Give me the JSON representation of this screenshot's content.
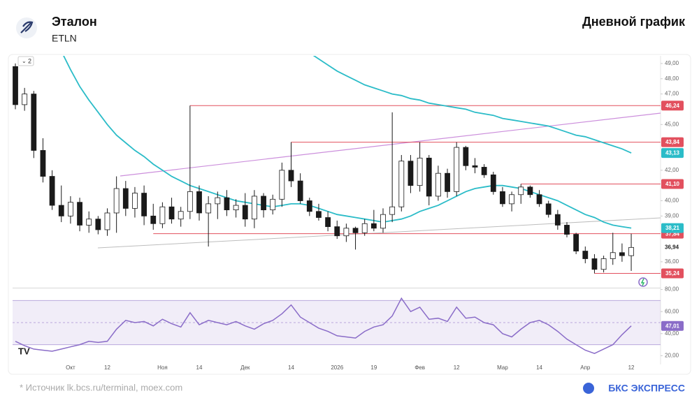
{
  "header": {
    "title": "Эталон",
    "ticker": "ETLN",
    "period": "Дневной график"
  },
  "footer": {
    "source": "* Источник lk.bcs.ru/terminal, moex.com",
    "brand": "БКС ЭКСПРЕСС"
  },
  "chart_data": {
    "type": "candlestick",
    "indicator_badge": "2",
    "categories": [
      null,
      null,
      null,
      null,
      null,
      null,
      "Окт",
      null,
      null,
      null,
      "12",
      null,
      null,
      null,
      null,
      null,
      "Ноя",
      null,
      null,
      null,
      "14",
      null,
      null,
      null,
      null,
      "Дек",
      null,
      null,
      null,
      null,
      "14",
      null,
      null,
      null,
      null,
      "2026",
      null,
      null,
      null,
      "19",
      null,
      null,
      null,
      null,
      "Фев",
      null,
      null,
      null,
      "12",
      null,
      null,
      null,
      null,
      "Мар",
      null,
      null,
      null,
      "14",
      null,
      null,
      null,
      null,
      "Апр",
      null,
      null,
      null,
      null,
      "12"
    ],
    "open": [
      48.8,
      46.3,
      47.0,
      43.3,
      41.6,
      39.7,
      39.0,
      39.9,
      38.4,
      38.8,
      38.1,
      39.2,
      40.8,
      39.5,
      40.5,
      39.0,
      38.5,
      39.6,
      38.8,
      39.3,
      40.6,
      39.2,
      39.8,
      40.2,
      39.4,
      39.7,
      38.8,
      40.3,
      39.4,
      40.1,
      42.0,
      41.3,
      40.0,
      39.3,
      38.9,
      38.3,
      37.7,
      38.2,
      37.9,
      38.5,
      38.2,
      39.1,
      39.6,
      42.6,
      41.0,
      42.8,
      40.3,
      41.8,
      40.6,
      43.5,
      42.3,
      42.2,
      41.7,
      40.6,
      39.8,
      40.4,
      40.9,
      40.4,
      39.8,
      39.1,
      38.4,
      37.8,
      36.7,
      36.2,
      35.5,
      36.2,
      36.6,
      36.4
    ],
    "high": [
      49.0,
      47.4,
      47.2,
      44.1,
      42.0,
      41.0,
      40.3,
      40.2,
      39.3,
      39.0,
      39.5,
      41.6,
      41.3,
      40.9,
      41.0,
      39.8,
      39.9,
      40.2,
      39.6,
      46.24,
      41.0,
      40.3,
      40.6,
      40.7,
      40.1,
      40.5,
      40.7,
      40.5,
      40.4,
      42.5,
      43.84,
      41.8,
      40.2,
      39.8,
      39.3,
      38.7,
      38.5,
      38.3,
      38.8,
      39.4,
      39.5,
      45.8,
      43.0,
      43.0,
      43.84,
      43.0,
      42.3,
      42.1,
      43.84,
      43.6,
      42.8,
      42.4,
      41.9,
      40.9,
      40.6,
      41.1,
      41.0,
      40.7,
      40.0,
      39.4,
      38.6,
      37.9,
      37.0,
      36.5,
      36.4,
      37.9,
      37.2,
      37.84
    ],
    "low": [
      46.0,
      45.9,
      42.8,
      41.2,
      39.4,
      38.6,
      38.5,
      38.0,
      37.9,
      37.8,
      37.7,
      37.9,
      39.0,
      38.9,
      38.4,
      38.1,
      38.2,
      38.5,
      38.3,
      38.8,
      38.7,
      37.0,
      38.8,
      39.0,
      38.9,
      38.3,
      38.2,
      38.9,
      39.1,
      39.6,
      40.9,
      39.8,
      39.0,
      38.7,
      38.0,
      37.5,
      37.3,
      36.8,
      37.7,
      38.0,
      37.9,
      38.6,
      39.3,
      40.5,
      40.6,
      39.7,
      40.0,
      40.2,
      40.3,
      42.0,
      41.8,
      41.5,
      40.4,
      39.6,
      39.3,
      39.8,
      40.2,
      39.6,
      38.9,
      38.1,
      37.6,
      36.5,
      35.9,
      35.24,
      35.3,
      35.8,
      36.0,
      35.4
    ],
    "close": [
      46.3,
      47.0,
      43.3,
      41.6,
      39.7,
      39.0,
      39.9,
      38.4,
      38.8,
      38.1,
      39.2,
      40.8,
      39.5,
      40.5,
      39.0,
      38.5,
      39.6,
      38.8,
      39.3,
      40.6,
      39.2,
      39.8,
      40.2,
      39.4,
      39.7,
      38.8,
      40.3,
      39.4,
      40.1,
      42.0,
      41.3,
      40.0,
      39.3,
      38.9,
      38.3,
      37.7,
      38.2,
      37.9,
      38.5,
      38.2,
      39.1,
      39.6,
      42.6,
      41.0,
      42.8,
      40.3,
      41.8,
      40.6,
      43.5,
      42.3,
      42.2,
      41.7,
      40.6,
      39.8,
      40.4,
      40.9,
      40.4,
      39.8,
      39.1,
      38.4,
      37.8,
      36.7,
      36.2,
      35.5,
      36.2,
      36.6,
      36.4,
      36.94
    ],
    "last_close_label": "36,94",
    "up_color": "#ffffff",
    "down_color": "#1a1a1a",
    "wick_color": "#1a1a1a",
    "ylim": [
      34.3,
      49.5
    ],
    "yticks": [
      {
        "value": 49,
        "label": "49,00"
      },
      {
        "value": 48,
        "label": "48,00"
      },
      {
        "value": 47,
        "label": "47,00"
      },
      {
        "value": 45,
        "label": "45,00"
      },
      {
        "value": 42,
        "label": "42,00"
      },
      {
        "value": 40,
        "label": "40,00"
      },
      {
        "value": 39,
        "label": "39,00"
      },
      {
        "value": 36,
        "label": "36,00"
      }
    ],
    "lines": [
      {
        "color": "#2bbcc8",
        "last_label": "38,21",
        "values": [
          null,
          null,
          null,
          null,
          null,
          49.8,
          48.6,
          47.5,
          46.6,
          45.8,
          45.0,
          44.3,
          43.8,
          43.3,
          42.9,
          42.4,
          42.0,
          41.6,
          41.3,
          41.0,
          40.8,
          40.6,
          40.4,
          40.2,
          40.0,
          39.9,
          39.8,
          39.7,
          39.6,
          39.7,
          39.8,
          39.8,
          39.7,
          39.5,
          39.3,
          39.1,
          39.0,
          38.9,
          38.8,
          38.7,
          38.6,
          38.7,
          38.8,
          39.0,
          39.3,
          39.5,
          39.7,
          40.0,
          40.3,
          40.6,
          40.8,
          40.9,
          41.0,
          41.0,
          40.9,
          40.8,
          40.6,
          40.4,
          40.2,
          40.0,
          39.7,
          39.4,
          39.1,
          38.9,
          38.6,
          38.4,
          38.3,
          38.21
        ]
      },
      {
        "color": "#2bbcc8",
        "last_label": "43,13",
        "values": [
          null,
          null,
          null,
          null,
          null,
          null,
          null,
          null,
          null,
          null,
          null,
          null,
          null,
          null,
          null,
          null,
          null,
          null,
          null,
          null,
          null,
          null,
          null,
          null,
          null,
          null,
          null,
          null,
          null,
          null,
          null,
          null,
          49.7,
          49.3,
          48.9,
          48.5,
          48.2,
          47.9,
          47.6,
          47.4,
          47.2,
          47.0,
          46.9,
          46.7,
          46.6,
          46.4,
          46.3,
          46.2,
          46.1,
          46.0,
          45.8,
          45.7,
          45.6,
          45.4,
          45.3,
          45.2,
          45.1,
          45.0,
          44.9,
          44.7,
          44.5,
          44.3,
          44.2,
          44.0,
          43.8,
          43.6,
          43.4,
          43.13
        ]
      }
    ],
    "levels": {
      "color": "#e2505e",
      "values": [
        46.24,
        43.84,
        41.1,
        37.84,
        35.24
      ],
      "value_labels": [
        "46,24",
        "43,84",
        "41,10",
        "37,84",
        "35,24"
      ]
    },
    "rsi": {
      "color": "#8a6cc8",
      "ylim": [
        12,
        81
      ],
      "yticks": [
        {
          "value": 80,
          "label": "80,00"
        },
        {
          "value": 60,
          "label": "60,00"
        },
        {
          "value": 40,
          "label": "40,00"
        },
        {
          "value": 20,
          "label": "20,00"
        }
      ],
      "band": [
        30,
        70
      ],
      "mid": 50,
      "last_label": "47,01",
      "values": [
        33,
        29,
        26,
        25,
        24,
        26,
        28,
        30,
        33,
        32,
        33,
        44,
        52,
        50,
        51,
        47,
        53,
        49,
        46,
        59,
        48,
        52,
        50,
        48,
        51,
        47,
        44,
        49,
        52,
        58,
        66,
        55,
        50,
        45,
        42,
        38,
        37,
        36,
        42,
        46,
        48,
        56,
        72,
        60,
        64,
        53,
        54,
        51,
        64,
        54,
        55,
        50,
        48,
        40,
        37,
        44,
        50,
        52,
        48,
        42,
        35,
        30,
        25,
        22,
        26,
        30,
        39,
        47.01
      ]
    }
  }
}
